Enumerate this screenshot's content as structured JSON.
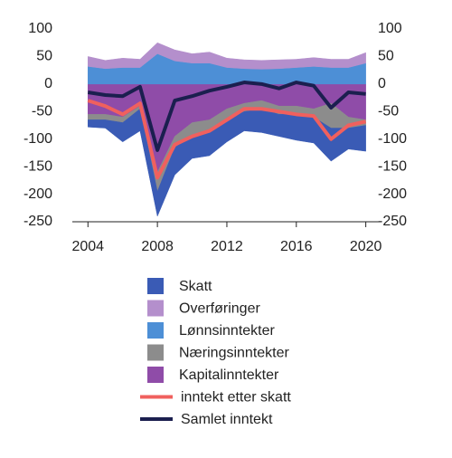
{
  "chart_data": {
    "type": "area",
    "x": [
      2004,
      2005,
      2006,
      2007,
      2008,
      2009,
      2010,
      2011,
      2012,
      2013,
      2014,
      2015,
      2016,
      2017,
      2018,
      2019,
      2020
    ],
    "xlim": [
      2003.1,
      2020.8
    ],
    "xticks": [
      2004,
      2008,
      2012,
      2016,
      2020
    ],
    "ylim": [
      -250,
      100
    ],
    "yticks": [
      100,
      50,
      0,
      -50,
      -100,
      -150,
      -200,
      -250
    ],
    "series": [
      {
        "name": "Skatt",
        "color": "#3a5bb5",
        "values": [
          -13,
          -15,
          -35,
          -40,
          -45,
          -50,
          -40,
          -45,
          -40,
          -35,
          -43,
          -40,
          -47,
          -47,
          -60,
          -38,
          -47
        ]
      },
      {
        "name": "Overføringer",
        "color": "#b48fcc",
        "values": [
          18,
          15,
          17,
          15,
          20,
          20,
          17,
          20,
          17,
          16,
          16,
          16,
          15,
          16,
          15,
          15,
          19
        ]
      },
      {
        "name": "Lønnsinntekter",
        "color": "#4d8fd6",
        "values": [
          32,
          28,
          30,
          30,
          55,
          42,
          38,
          38,
          30,
          28,
          27,
          28,
          30,
          32,
          30,
          30,
          38
        ]
      },
      {
        "name": "Næringsinntekter",
        "color": "#8c8c8c",
        "values": [
          -10,
          -10,
          -10,
          -5,
          -35,
          -20,
          -25,
          -20,
          -20,
          -15,
          -15,
          -15,
          -15,
          -15,
          -45,
          -20,
          -10
        ]
      },
      {
        "name": "Kapitalinntekter",
        "color": "#8f4ca8",
        "values": [
          -55,
          -55,
          -60,
          -40,
          -160,
          -95,
          -70,
          -65,
          -45,
          -35,
          -30,
          -40,
          -40,
          -45,
          -35,
          -60,
          -65
        ]
      },
      {
        "name": "inntekt etter skatt",
        "type": "line",
        "color": "#f0605e",
        "values": [
          -30,
          -40,
          -55,
          -35,
          -170,
          -110,
          -95,
          -85,
          -65,
          -45,
          -45,
          -50,
          -55,
          -58,
          -100,
          -75,
          -68
        ]
      },
      {
        "name": "Samlet inntekt",
        "type": "line",
        "color": "#1b1f4f",
        "values": [
          -15,
          -20,
          -22,
          -5,
          -120,
          -30,
          -22,
          -12,
          -5,
          3,
          0,
          -8,
          3,
          -3,
          -43,
          -15,
          -18
        ]
      }
    ]
  }
}
